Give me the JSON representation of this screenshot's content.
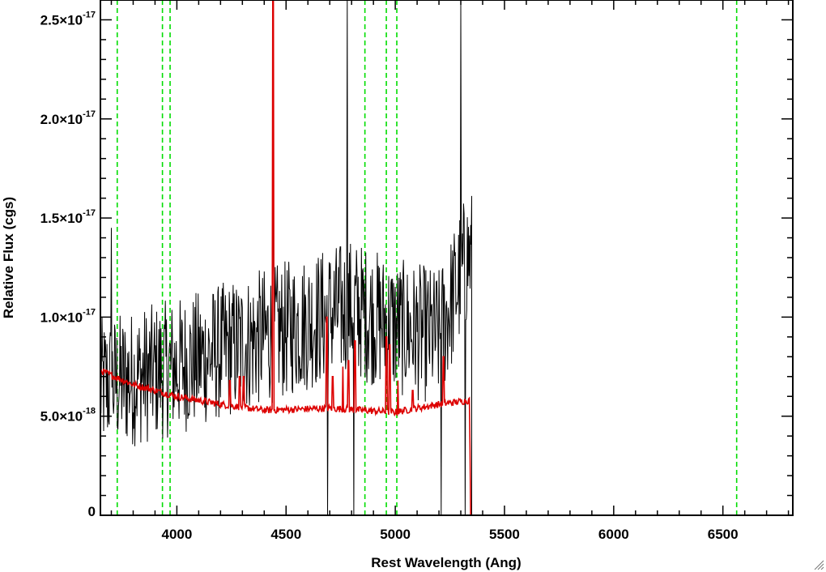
{
  "chart_data": {
    "type": "line",
    "xlabel": "Rest Wavelength (Ang)",
    "ylabel": "Relative Flux (cgs)",
    "xlim": [
      3650,
      6820
    ],
    "ylim": [
      0,
      2.6e-17
    ],
    "grid": false,
    "x_major_ticks": [
      4000,
      4500,
      5000,
      5500,
      6000,
      6500
    ],
    "x_minor_step": 100,
    "y_major_ticks": [
      {
        "value": 0,
        "mantissa": "0",
        "exponent": ""
      },
      {
        "value": 5e-18,
        "mantissa": "5.0×10",
        "exponent": "-18"
      },
      {
        "value": 1e-17,
        "mantissa": "1.0×10",
        "exponent": "-17"
      },
      {
        "value": 1.5e-17,
        "mantissa": "1.5×10",
        "exponent": "-17"
      },
      {
        "value": 2e-17,
        "mantissa": "2.0×10",
        "exponent": "-17"
      },
      {
        "value": 2.5e-17,
        "mantissa": "2.5×10",
        "exponent": "-17"
      }
    ],
    "y_minor_step": 1e-18,
    "reference_lines": {
      "color": "#00dd00",
      "style": "dashed",
      "x": [
        3727,
        3934,
        3969,
        4861,
        4959,
        5007,
        6563
      ]
    },
    "series": [
      {
        "color": "#000000",
        "x_range": [
          3650,
          5350
        ],
        "noise_amplitude": 3.5e-18,
        "envelope": [
          [
            3650,
            6.5e-18
          ],
          [
            4000,
            7.5e-18
          ],
          [
            4400,
            9e-18
          ],
          [
            4800,
            1.05e-17
          ],
          [
            5000,
            9.5e-18
          ],
          [
            5200,
            9e-18
          ],
          [
            5330,
            1.3e-17
          ]
        ],
        "spikes": [
          [
            3700,
            1.45e-17
          ],
          [
            4440,
            2.6e-17
          ],
          [
            4690,
            0.0
          ],
          [
            4780,
            2.6e-17
          ],
          [
            4810,
            0.0
          ],
          [
            5210,
            0.0
          ],
          [
            5300,
            2.6e-17
          ],
          [
            5320,
            0.0
          ]
        ],
        "drop_to_zero_at": 5350
      },
      {
        "color": "#dd0000",
        "continuum": [
          [
            3650,
            7.3e-18
          ],
          [
            3800,
            6.6e-18
          ],
          [
            4000,
            6e-18
          ],
          [
            4200,
            5.6e-18
          ],
          [
            4400,
            5.3e-18
          ],
          [
            4700,
            5.4e-18
          ],
          [
            5000,
            5.2e-18
          ],
          [
            5200,
            5.6e-18
          ],
          [
            5340,
            5.8e-18
          ],
          [
            5345,
            0.0
          ],
          [
            6820,
            0.0
          ]
        ],
        "emission_lines": [
          [
            4243,
            6.8e-18
          ],
          [
            4287,
            7e-18
          ],
          [
            4306,
            7e-18
          ],
          [
            4440,
            2.6e-17
          ],
          [
            4686,
            1e-17
          ],
          [
            4713,
            7e-18
          ],
          [
            4760,
            7.5e-18
          ],
          [
            4785,
            7.8e-18
          ],
          [
            4815,
            8.8e-18
          ],
          [
            4959,
            9e-18
          ],
          [
            4975,
            8.6e-18
          ],
          [
            5012,
            6.8e-18
          ],
          [
            5080,
            6.3e-18
          ],
          [
            5220,
            8e-18
          ]
        ]
      }
    ]
  }
}
